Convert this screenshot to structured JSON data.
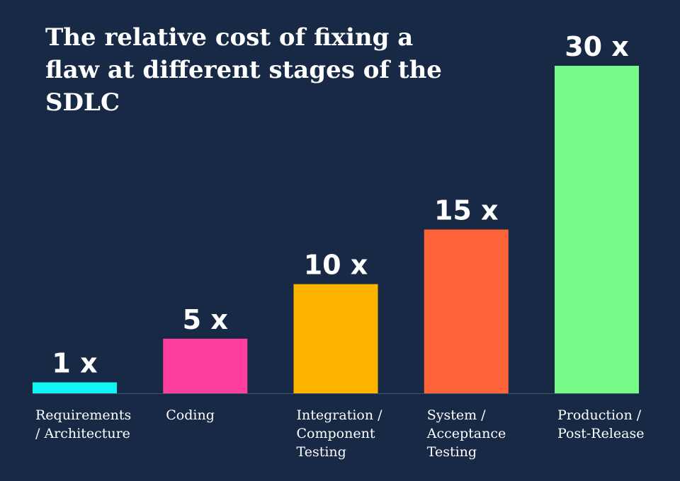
{
  "chart_data": {
    "type": "bar",
    "title": "The relative cost of fixing a flaw at different stages of the SDLC",
    "categories": [
      [
        "Requirements",
        "/ Architecture"
      ],
      [
        "Coding"
      ],
      [
        "Integration /",
        "Component",
        "Testing"
      ],
      [
        "System /",
        "Acceptance",
        "Testing"
      ],
      [
        "Production /",
        "Post-Release"
      ]
    ],
    "values": [
      1,
      5,
      10,
      15,
      30
    ],
    "data_labels": [
      "1 x",
      "5 x",
      "10 x",
      "15 x",
      "30 x"
    ],
    "colors": [
      "#12f4f4",
      "#ff3f9f",
      "#ffb400",
      "#ff6338",
      "#78fa8a"
    ],
    "ylim": [
      0,
      30
    ],
    "xlabel": "",
    "ylabel": "",
    "grid": false,
    "legend": "none"
  }
}
